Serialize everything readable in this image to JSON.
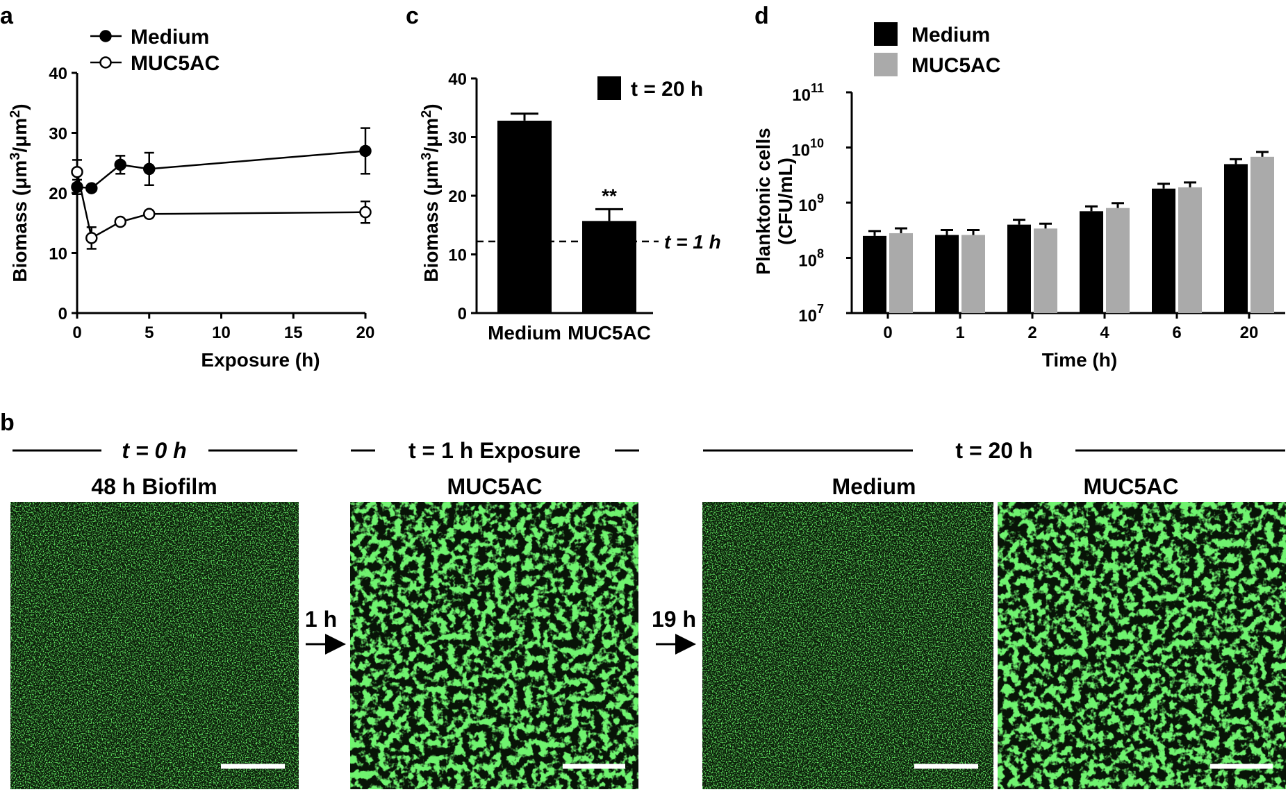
{
  "panels": {
    "a": "a",
    "b": "b",
    "c": "c",
    "d": "d"
  },
  "chart_data": [
    {
      "panel": "a",
      "type": "line",
      "xlabel": "Exposure (h)",
      "ylabel": "Biomass (μm³/μm²)",
      "xlim": [
        0,
        20
      ],
      "ylim": [
        0,
        40
      ],
      "xticks": [
        "0",
        "5",
        "10",
        "15",
        "20"
      ],
      "yticks": [
        "0",
        "10",
        "20",
        "30",
        "40"
      ],
      "legend_position": "top-left",
      "series": [
        {
          "name": "Medium",
          "marker": "filled-circle",
          "x": [
            0,
            1,
            3,
            5,
            20
          ],
          "values": [
            21,
            20.8,
            24.7,
            24,
            27
          ],
          "err": [
            1.2,
            0.5,
            1.5,
            2.7,
            3.8
          ]
        },
        {
          "name": "MUC5AC",
          "marker": "open-circle",
          "x": [
            0,
            1,
            3,
            5,
            20
          ],
          "values": [
            23.5,
            12.5,
            15.2,
            16.5,
            16.8
          ],
          "err": [
            2,
            1.8,
            0.5,
            0.5,
            1.8
          ]
        }
      ]
    },
    {
      "panel": "c",
      "type": "bar",
      "ylabel": "Biomass (μm³/μm²)",
      "ylim": [
        0,
        40
      ],
      "yticks": [
        "0",
        "10",
        "20",
        "30",
        "40"
      ],
      "categories": [
        "Medium",
        "MUC5AC"
      ],
      "values": [
        32.8,
        15.7
      ],
      "err": [
        1.2,
        2
      ],
      "legend": "t = 20 h",
      "annotations": [
        {
          "text": "**",
          "category": "MUC5AC"
        },
        {
          "text": "t = 1 h",
          "reference_line": 12.2
        }
      ]
    },
    {
      "panel": "d",
      "type": "bar",
      "xlabel": "Time (h)",
      "ylabel": "Planktonic cells (CFU/mL)",
      "yscale": "log",
      "ylim": [
        10000000,
        100000000000
      ],
      "yticks": [
        "10^7",
        "10^8",
        "10^9",
        "10^10",
        "10^11"
      ],
      "categories": [
        "0",
        "1",
        "2",
        "4",
        "6",
        "20"
      ],
      "legend_position": "top-left",
      "series": [
        {
          "name": "Medium",
          "color": "#000000",
          "values": [
            250000000,
            260000000,
            400000000,
            700000000,
            1800000000,
            5000000000
          ]
        },
        {
          "name": "MUC5AC",
          "color": "#aaaaaa",
          "values": [
            280000000,
            260000000,
            340000000,
            800000000,
            1900000000,
            6800000000
          ]
        }
      ]
    }
  ],
  "panel_b": {
    "group1_header": "t = 0 h",
    "group2_header": "t = 1 h Exposure",
    "group3_header": "t = 20 h",
    "img1_title": "48 h Biofilm",
    "img2_title": "MUC5AC",
    "img3_title": "Medium",
    "img4_title": "MUC5AC",
    "arrow1_label": "1 h",
    "arrow2_label": "19 h"
  },
  "colors": {
    "biofilm_green": "#22cc22",
    "background_dark": "#0a1a08",
    "muc5ac_bar": "#aaaaaa"
  }
}
